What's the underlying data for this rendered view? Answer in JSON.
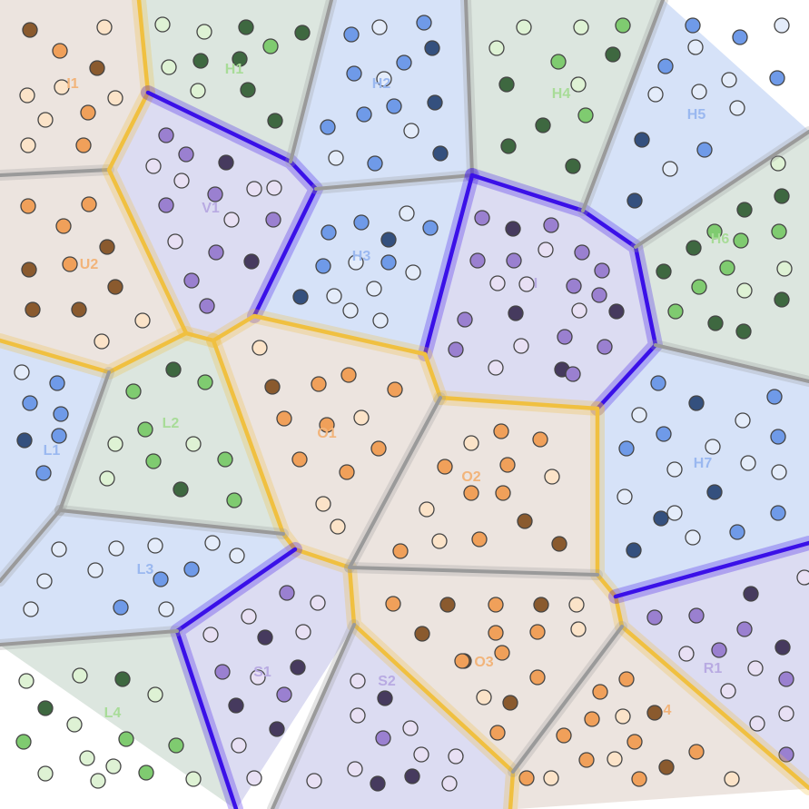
{
  "palette": {
    "orange": {
      "fill": "#ece4df",
      "dark": "#8a5a2e",
      "mid": "#f0a05a",
      "light": "#fbe3c8",
      "label": "#f2b47a"
    },
    "green": {
      "fill": "#dce6df",
      "dark": "#3e6840",
      "mid": "#7fcb70",
      "light": "#def2d4",
      "label": "#a8dc98"
    },
    "blue": {
      "fill": "#d6e2f8",
      "dark": "#34507e",
      "mid": "#6f9ae8",
      "light": "#e4ecfa",
      "label": "#9ab8f0"
    },
    "purple": {
      "fill": "#dcdcf2",
      "dark": "#463a5e",
      "mid": "#9a80d0",
      "light": "#e8e0f4",
      "label": "#b8aae2"
    }
  },
  "boundary_colors": {
    "gray": "#9a9a9a",
    "gold": "#f0c040",
    "blue": "#3a10e8"
  },
  "regions": [
    {
      "label": "I1",
      "group": "orange"
    },
    {
      "label": "U2",
      "group": "orange"
    },
    {
      "label": "H1",
      "group": "green"
    },
    {
      "label": "V1",
      "group": "purple"
    },
    {
      "label": "H2",
      "group": "blue"
    },
    {
      "label": "H3",
      "group": "blue"
    },
    {
      "label": "H4",
      "group": "green"
    },
    {
      "label": "H5",
      "group": "blue"
    },
    {
      "label": "I",
      "group": "purple"
    },
    {
      "label": "H6",
      "group": "green"
    },
    {
      "label": "L1",
      "group": "blue"
    },
    {
      "label": "L2",
      "group": "green"
    },
    {
      "label": "O1",
      "group": "orange"
    },
    {
      "label": "O2",
      "group": "orange"
    },
    {
      "label": "H7",
      "group": "blue"
    },
    {
      "label": "L3",
      "group": "blue"
    },
    {
      "label": "S1",
      "group": "purple"
    },
    {
      "label": "S2",
      "group": "purple"
    },
    {
      "label": "O3",
      "group": "orange"
    },
    {
      "label": "R1",
      "group": "purple"
    },
    {
      "label": "L4",
      "group": "green"
    },
    {
      "label": "4",
      "group": "orange"
    }
  ]
}
